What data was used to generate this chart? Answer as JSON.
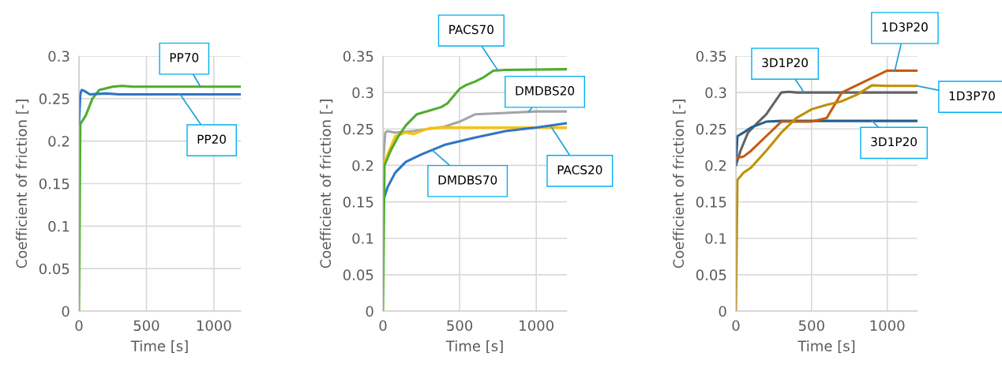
{
  "chart_data": [
    {
      "type": "line",
      "xlabel": "Time [s]",
      "ylabel": "Coefficient of friction [-]",
      "xlim": [
        0,
        1200
      ],
      "xticks": [
        0,
        500,
        1000
      ],
      "ylim": [
        0,
        0.3
      ],
      "yticks": [
        0,
        0.05,
        0.1,
        0.15,
        0.2,
        0.25,
        0.3
      ],
      "grid": true,
      "legend": false,
      "marker": "none",
      "line_style": "solid",
      "series": [
        {
          "name": "PP70",
          "color": "#4fad2e",
          "x": [
            0,
            10,
            50,
            100,
            150,
            250,
            320,
            400,
            1200
          ],
          "values": [
            0,
            0.22,
            0.23,
            0.25,
            0.26,
            0.264,
            0.265,
            0.264,
            0.264
          ]
        },
        {
          "name": "PP20",
          "color": "#2e75c6",
          "x": [
            0,
            10,
            20,
            40,
            80,
            200,
            300,
            1200
          ],
          "values": [
            0.22,
            0.255,
            0.26,
            0.259,
            0.255,
            0.256,
            0.255,
            0.255
          ]
        }
      ]
    },
    {
      "type": "line",
      "xlabel": "Time [s]",
      "ylabel": "Coefficient of friction [-]",
      "xlim": [
        0,
        1200
      ],
      "xticks": [
        0,
        500,
        1000
      ],
      "ylim": [
        0,
        0.35
      ],
      "yticks": [
        0,
        0.05,
        0.1,
        0.15,
        0.2,
        0.25,
        0.3,
        0.35
      ],
      "grid": true,
      "legend": false,
      "marker": "none",
      "line_style": "solid",
      "series": [
        {
          "name": "DMDBS20",
          "color": "#a5a5a5",
          "x": [
            0,
            15,
            30,
            80,
            200,
            400,
            500,
            600,
            800,
            1000,
            1200
          ],
          "values": [
            0.2,
            0.245,
            0.247,
            0.245,
            0.247,
            0.253,
            0.26,
            0.27,
            0.272,
            0.274,
            0.274
          ]
        },
        {
          "name": "PACS20",
          "color": "#ffc000",
          "x": [
            0,
            30,
            80,
            150,
            200,
            250,
            300,
            400,
            1200
          ],
          "values": [
            0.2,
            0.215,
            0.24,
            0.245,
            0.243,
            0.247,
            0.251,
            0.252,
            0.252
          ]
        },
        {
          "name": "DMDBS70",
          "color": "#2e75c6",
          "x": [
            0,
            30,
            80,
            150,
            250,
            400,
            600,
            800,
            1000,
            1200
          ],
          "values": [
            0.15,
            0.17,
            0.19,
            0.205,
            0.215,
            0.228,
            0.238,
            0.247,
            0.252,
            0.258
          ]
        },
        {
          "name": "PACS70",
          "color": "#4fad2e",
          "x": [
            0,
            10,
            50,
            100,
            150,
            220,
            300,
            380,
            420,
            500,
            540,
            600,
            650,
            720,
            800,
            1200
          ],
          "values": [
            0,
            0.2,
            0.22,
            0.24,
            0.255,
            0.27,
            0.275,
            0.28,
            0.285,
            0.305,
            0.31,
            0.315,
            0.32,
            0.33,
            0.331,
            0.332
          ]
        }
      ]
    },
    {
      "type": "line",
      "xlabel": "Time [s]",
      "ylabel": "Coefficient of friction [-]",
      "xlim": [
        0,
        1200
      ],
      "xticks": [
        0,
        500,
        1000
      ],
      "ylim": [
        0,
        0.35
      ],
      "yticks": [
        0,
        0.05,
        0.1,
        0.15,
        0.2,
        0.25,
        0.3,
        0.35
      ],
      "grid": true,
      "legend": false,
      "marker": "none",
      "line_style": "solid",
      "series": [
        {
          "name": "3D1P20",
          "color": "#636363",
          "x": [
            0,
            30,
            80,
            150,
            200,
            250,
            300,
            350,
            400,
            1200
          ],
          "values": [
            0.2,
            0.22,
            0.245,
            0.26,
            0.27,
            0.285,
            0.3,
            0.301,
            0.3,
            0.3
          ]
        },
        {
          "name": "3D1P20",
          "color": "#255e91",
          "x": [
            0,
            10,
            50,
            100,
            200,
            300,
            1200
          ],
          "values": [
            0.2,
            0.24,
            0.245,
            0.252,
            0.26,
            0.261,
            0.261
          ]
        },
        {
          "name": "1D3P20",
          "color": "#c55a11",
          "x": [
            0,
            50,
            100,
            200,
            300,
            400,
            500,
            600,
            700,
            800,
            900,
            1000,
            1200
          ],
          "values": [
            0.21,
            0.212,
            0.22,
            0.24,
            0.26,
            0.26,
            0.26,
            0.265,
            0.3,
            0.31,
            0.32,
            0.33,
            0.33
          ]
        },
        {
          "name": "1D3P70",
          "color": "#bf9000",
          "x": [
            0,
            10,
            50,
            100,
            200,
            300,
            400,
            500,
            600,
            700,
            800,
            900,
            1000,
            1200
          ],
          "values": [
            0,
            0.18,
            0.19,
            0.197,
            0.22,
            0.245,
            0.265,
            0.277,
            0.283,
            0.288,
            0.297,
            0.31,
            0.309,
            0.309
          ]
        }
      ]
    }
  ]
}
